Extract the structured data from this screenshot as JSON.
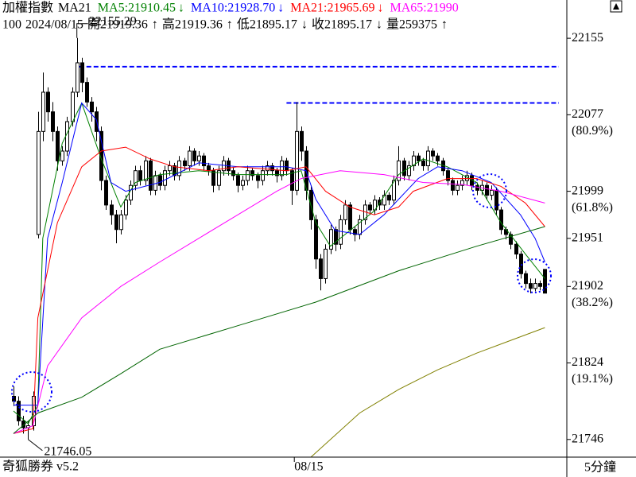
{
  "chart_data": {
    "type": "candlestick",
    "title": "加權指數",
    "indicator": "MA21",
    "info_line": [
      "100",
      "2024/08/15",
      "開21919.36",
      "↑",
      "高21919.36",
      "↑",
      "低21895.17",
      "↓",
      "收21895.17",
      "↓",
      "量259375",
      "↑"
    ],
    "footer_left": "奇狐勝券 v5.2",
    "footer_right": "5分鐘",
    "xlim": [
      -2.77,
      113.5
    ],
    "ylim": [
      21728,
      22194
    ],
    "yticks": [
      22155,
      22077,
      21999,
      21951,
      21902,
      21824,
      21746
    ],
    "retracements": [
      {
        "value": 22077,
        "label": "(80.9%)"
      },
      {
        "value": 21999,
        "label": "(61.8%)"
      },
      {
        "value": 21902,
        "label": "(38.2%)"
      },
      {
        "value": 21824,
        "label": "(19.1%)"
      }
    ],
    "xticks": [
      {
        "value": 57.6,
        "label": "08/15"
      }
    ],
    "up_color": "#ffffff",
    "down_color": "#000000",
    "candles": [
      [
        21790,
        21800,
        21780,
        21785
      ],
      [
        21785,
        21790,
        21760,
        21765
      ],
      [
        21765,
        21770,
        21752,
        21758
      ],
      [
        21758,
        21765,
        21746.05,
        21760
      ],
      [
        21760,
        21795,
        21755,
        21790
      ],
      [
        21955,
        22080,
        21951,
        22060
      ],
      [
        22060,
        22120,
        22050,
        22100
      ],
      [
        22100,
        22105,
        22070,
        22080
      ],
      [
        22080,
        22090,
        22050,
        22060
      ],
      [
        22060,
        22065,
        22020,
        22030
      ],
      [
        22030,
        22045,
        22025,
        22040
      ],
      [
        22040,
        22075,
        22035,
        22070
      ],
      [
        22070,
        22105,
        22065,
        22100
      ],
      [
        22100,
        22155.29,
        22095,
        22130
      ],
      [
        22130,
        22135,
        22100,
        22110
      ],
      [
        22110,
        22115,
        22085,
        22090
      ],
      [
        22090,
        22095,
        22070,
        22080
      ],
      [
        22080,
        22085,
        22050,
        22060
      ],
      [
        22060,
        22065,
        22000,
        22010
      ],
      [
        22010,
        22015,
        21980,
        21985
      ],
      [
        21985,
        21990,
        21965,
        21975
      ],
      [
        21975,
        21980,
        21946,
        21960
      ],
      [
        21960,
        21980,
        21955,
        21975
      ],
      [
        21975,
        21995,
        21970,
        21990
      ],
      [
        21990,
        22010,
        21985,
        22005
      ],
      [
        22005,
        22025,
        22000,
        22020
      ],
      [
        22020,
        22025,
        22005,
        22010
      ],
      [
        22010,
        22035,
        22005,
        22030
      ],
      [
        22030,
        22033,
        21995,
        22000
      ],
      [
        22000,
        22020,
        21995,
        22015
      ],
      [
        22015,
        22018,
        22000,
        22005
      ],
      [
        22005,
        22025,
        22000,
        22020
      ],
      [
        22020,
        22030,
        22015,
        22025
      ],
      [
        22025,
        22028,
        22010,
        22015
      ],
      [
        22015,
        22035,
        22010,
        22030
      ],
      [
        22030,
        22033,
        22020,
        22025
      ],
      [
        22025,
        22045,
        22020,
        22040
      ],
      [
        22040,
        22043,
        22025,
        22030
      ],
      [
        22030,
        22040,
        22025,
        22035
      ],
      [
        22035,
        22038,
        22020,
        22025
      ],
      [
        22025,
        22028,
        22015,
        22020
      ],
      [
        22020,
        22023,
        21998,
        22005
      ],
      [
        22005,
        22025,
        22000,
        22020
      ],
      [
        22020,
        22035,
        22015,
        22030
      ],
      [
        22030,
        22033,
        22015,
        22020
      ],
      [
        22020,
        22023,
        22010,
        22015
      ],
      [
        22015,
        22018,
        21998,
        22005
      ],
      [
        22005,
        22015,
        22000,
        22010
      ],
      [
        22010,
        22025,
        22005,
        22020
      ],
      [
        22020,
        22023,
        22010,
        22015
      ],
      [
        22015,
        22018,
        22002,
        22010
      ],
      [
        22010,
        22025,
        22005,
        22020
      ],
      [
        22020,
        22030,
        22015,
        22025
      ],
      [
        22025,
        22028,
        22015,
        22020
      ],
      [
        22020,
        22023,
        22008,
        22015
      ],
      [
        22015,
        22035,
        22010,
        22030
      ],
      [
        22030,
        22033,
        22015,
        22020
      ],
      [
        22020,
        22023,
        21985,
        22000
      ],
      [
        22000,
        22090,
        21995,
        22060
      ],
      [
        22060,
        22065,
        22030,
        22040
      ],
      [
        22040,
        22045,
        21990,
        22000
      ],
      [
        22000,
        22005,
        21960,
        21970
      ],
      [
        21970,
        21975,
        21920,
        21930
      ],
      [
        21930,
        21935,
        21898,
        21910
      ],
      [
        21910,
        21945,
        21905,
        21940
      ],
      [
        21940,
        21965,
        21935,
        21960
      ],
      [
        21960,
        21963,
        21938,
        21945
      ],
      [
        21945,
        21975,
        21940,
        21970
      ],
      [
        21970,
        21990,
        21965,
        21985
      ],
      [
        21985,
        21988,
        21955,
        21960
      ],
      [
        21960,
        21963,
        21948,
        21955
      ],
      [
        21955,
        21975,
        21950,
        21970
      ],
      [
        21970,
        21990,
        21965,
        21985
      ],
      [
        21985,
        21988,
        21975,
        21980
      ],
      [
        21980,
        21995,
        21975,
        21990
      ],
      [
        21990,
        21993,
        21980,
        21985
      ],
      [
        21985,
        22000,
        21980,
        21995
      ],
      [
        21995,
        21998,
        21985,
        21990
      ],
      [
        21990,
        22015,
        21985,
        22010
      ],
      [
        22010,
        22045,
        22005,
        22030
      ],
      [
        22030,
        22033,
        22010,
        22015
      ],
      [
        22015,
        22030,
        22010,
        22025
      ],
      [
        22025,
        22040,
        22020,
        22035
      ],
      [
        22035,
        22038,
        22025,
        22030
      ],
      [
        22030,
        22033,
        22020,
        22025
      ],
      [
        22025,
        22045,
        22020,
        22040
      ],
      [
        22040,
        22043,
        22030,
        22035
      ],
      [
        22035,
        22038,
        22025,
        22030
      ],
      [
        22030,
        22033,
        22015,
        22020
      ],
      [
        22020,
        22023,
        22005,
        22010
      ],
      [
        22010,
        22013,
        21995,
        22000
      ],
      [
        22000,
        22010,
        21995,
        22005
      ],
      [
        22005,
        22015,
        22000,
        22010
      ],
      [
        22010,
        22020,
        22005,
        22015
      ],
      [
        22015,
        22018,
        22000,
        22005
      ],
      [
        22005,
        22008,
        21995,
        22000
      ],
      [
        22000,
        22010,
        21995,
        22005
      ],
      [
        22005,
        22008,
        21990,
        21995
      ],
      [
        21995,
        22005,
        21990,
        22000
      ],
      [
        22000,
        22003,
        21975,
        21980
      ],
      [
        21980,
        21983,
        21955,
        21960
      ],
      [
        21960,
        21963,
        21950,
        21955
      ],
      [
        21955,
        21958,
        21940,
        21945
      ],
      [
        21945,
        21948,
        21930,
        21935
      ],
      [
        21935,
        21938,
        21910,
        21915
      ],
      [
        21915,
        21918,
        21900,
        21905
      ],
      [
        21905,
        21910,
        21895,
        21900
      ],
      [
        21900,
        21910,
        21897,
        21905
      ],
      [
        21905,
        21908,
        21898,
        21902
      ],
      [
        21919.36,
        21919.36,
        21895.17,
        21895.17
      ]
    ],
    "series": [
      {
        "label": "MA5:21910.45",
        "arrow": "↓",
        "color": "#008000",
        "x": [
          0,
          3,
          5,
          6,
          10,
          14,
          18,
          22,
          25,
          30,
          38,
          46,
          56,
          59,
          62,
          65,
          69,
          74,
          79,
          84,
          89,
          95,
          100,
          105,
          109
        ],
        "values": [
          21775,
          21762,
          21781,
          21951,
          22048,
          22089,
          22032,
          21983,
          22008,
          22016,
          22020,
          22016,
          22016,
          22020,
          21967,
          21943,
          21959,
          21979,
          22016,
          22032,
          22024,
          22008,
          21967,
          21935,
          21910
        ]
      },
      {
        "label": "MA10:21928.70",
        "arrow": "↓",
        "color": "#0000ff",
        "x": [
          0,
          5,
          7,
          10,
          14,
          17,
          20,
          23,
          30,
          38,
          46,
          56,
          60,
          62,
          66,
          71,
          76,
          83,
          87,
          92,
          98,
          104,
          107,
          109
        ],
        "values": [
          21781,
          21781,
          21951,
          22008,
          22089,
          22072,
          22008,
          21999,
          22008,
          22028,
          22024,
          22024,
          22020,
          21991,
          21959,
          21955,
          21975,
          22012,
          22024,
          22020,
          22008,
          21975,
          21951,
          21927
        ]
      },
      {
        "label": "MA21:21965.69",
        "arrow": "↓",
        "color": "#ff0000",
        "x": [
          0,
          4,
          5,
          9,
          14,
          18,
          23,
          28,
          33,
          40,
          46,
          56,
          60,
          64,
          69,
          74,
          79,
          82,
          89,
          95,
          100,
          105,
          109
        ],
        "values": [
          21752,
          21757,
          21870,
          21967,
          22024,
          22040,
          22044,
          22032,
          22024,
          22020,
          22024,
          22020,
          22024,
          21999,
          21983,
          21975,
          21983,
          21999,
          22012,
          22012,
          22004,
          21987,
          21963
        ]
      },
      {
        "label": "MA65:21990",
        "color": "#ff00ff",
        "x": [
          0,
          4,
          7,
          14,
          22,
          30,
          38,
          46,
          54,
          59,
          67,
          76,
          84,
          92,
          100,
          109
        ],
        "values": [
          21752,
          21760,
          21821,
          21870,
          21902,
          21927,
          21951,
          21975,
          21999,
          22012,
          22020,
          22016,
          22008,
          22006,
          21999,
          21987
        ]
      },
      {
        "color": "#006400",
        "x": [
          0,
          5,
          14,
          22,
          30,
          46,
          62,
          79,
          95,
          109
        ],
        "values": [
          21752,
          21773,
          21789,
          21813,
          21838,
          21862,
          21886,
          21918,
          21943,
          21963
        ]
      },
      {
        "color": "#808000",
        "x": [
          61,
          71,
          79,
          87,
          95,
          109
        ],
        "values": [
          21728,
          21773,
          21797,
          21817,
          21834,
          21860
        ]
      }
    ],
    "hlines": [
      {
        "value": 22126,
        "from": 13.5
      },
      {
        "value": 22089,
        "from": 56
      }
    ],
    "hline_color": "#0000ff",
    "high_label": {
      "candle": 13
    },
    "low_label": {
      "candle": 3
    }
  }
}
